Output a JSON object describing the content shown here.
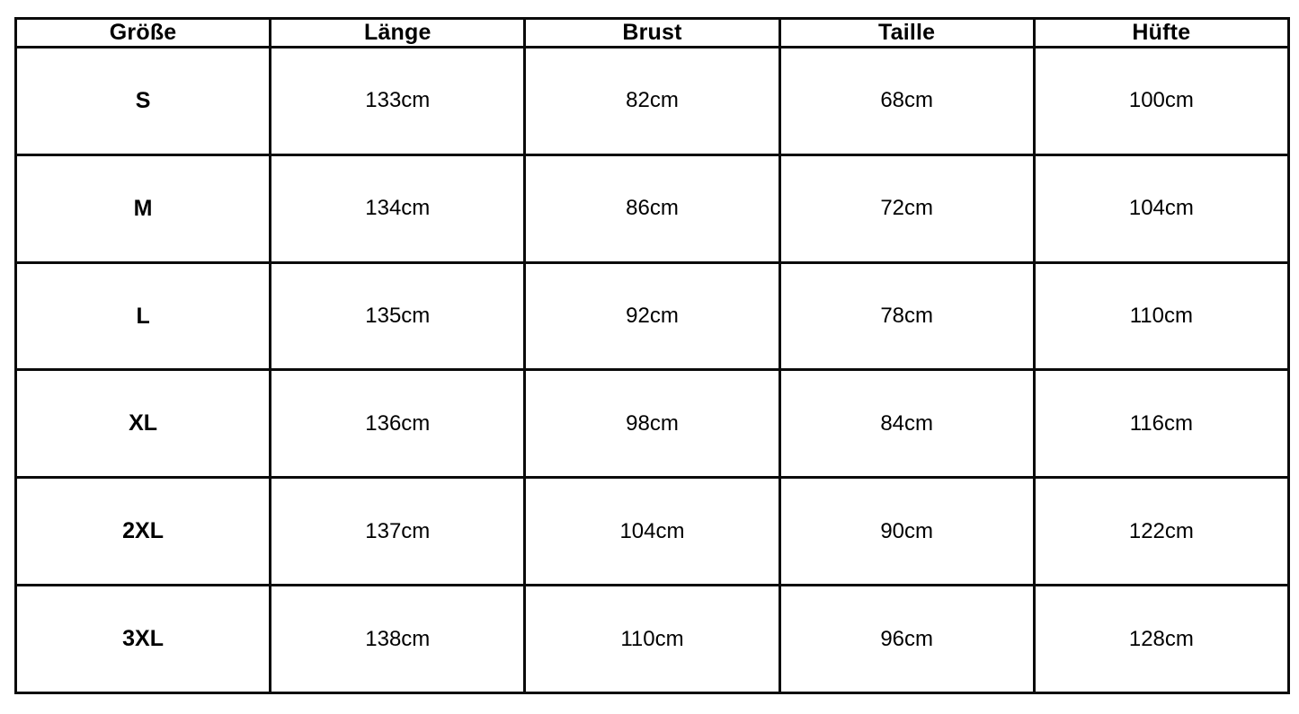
{
  "chart_data": {
    "type": "table",
    "title": "Size chart (German garment measurements)",
    "columns": [
      "Größe",
      "Länge",
      "Brust",
      "Taille",
      "Hüfte"
    ],
    "rows": [
      [
        "S",
        "133cm",
        "82cm",
        "68cm",
        "100cm"
      ],
      [
        "M",
        "134cm",
        "86cm",
        "72cm",
        "104cm"
      ],
      [
        "L",
        "135cm",
        "92cm",
        "78cm",
        "110cm"
      ],
      [
        "XL",
        "136cm",
        "98cm",
        "84cm",
        "116cm"
      ],
      [
        "2XL",
        "137cm",
        "104cm",
        "90cm",
        "122cm"
      ],
      [
        "3XL",
        "138cm",
        "110cm",
        "96cm",
        "128cm"
      ]
    ],
    "unit": "cm",
    "layout": {
      "grid": "on",
      "border_color": "#0b0b0b",
      "background_color": "#ffffff",
      "text_color": "#000000",
      "header_bold": true,
      "first_column_bold": true
    }
  }
}
